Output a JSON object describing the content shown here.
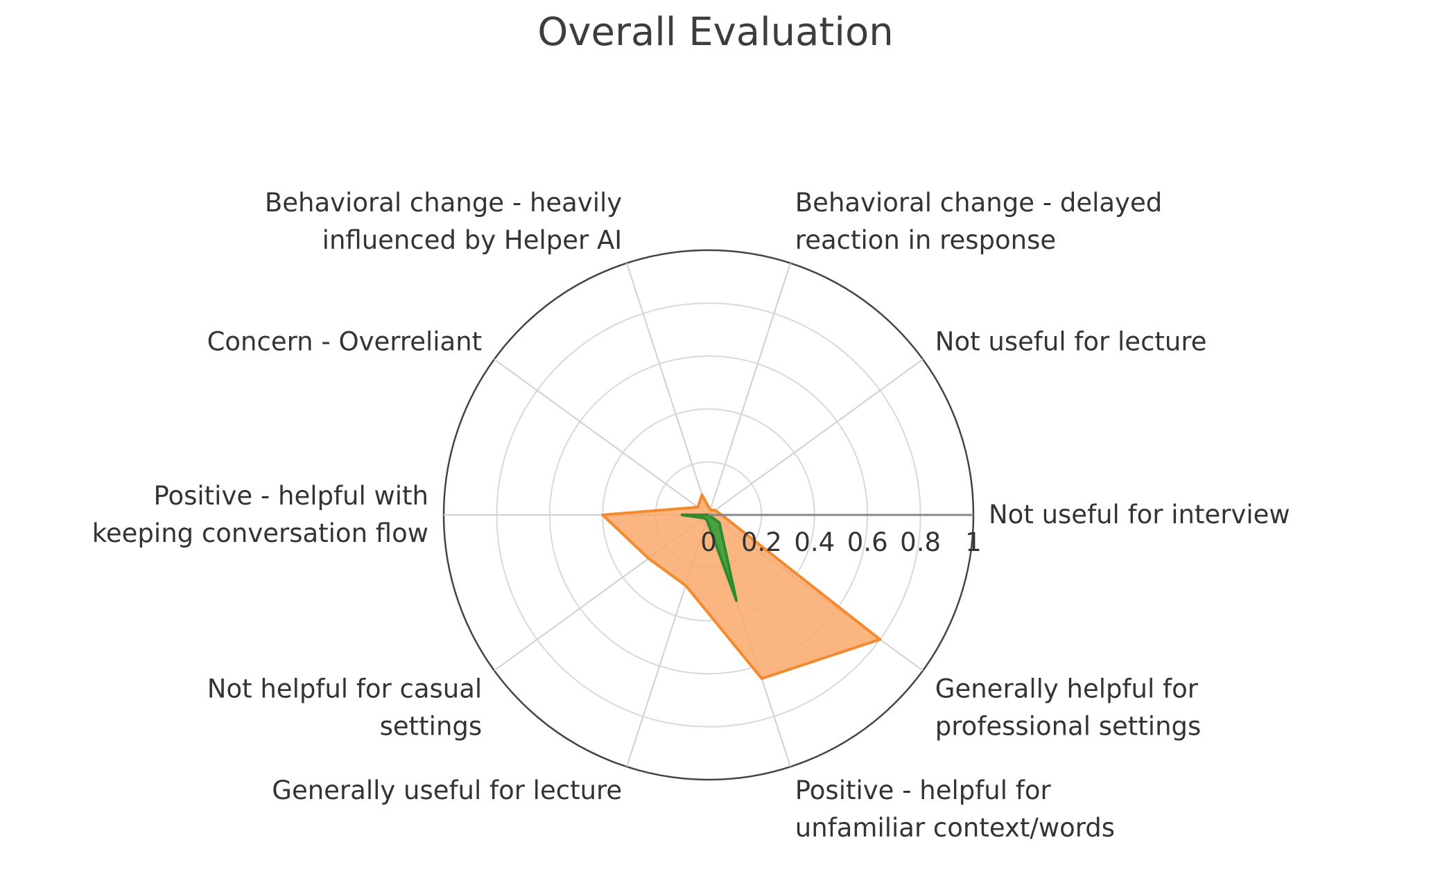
{
  "chart_data": {
    "type": "radar",
    "title": "Overall Evaluation",
    "categories": [
      "Not useful for interview",
      "Not useful for lecture",
      "Behavioral change - delayed reaction in response",
      "Behavioral change - heavily influenced by Helper AI",
      "Concern - Overreliant",
      "Positive - helpful with keeping conversation flow",
      "Not helpful for casual settings",
      "Generally useful for lecture",
      "Positive - helpful for unfamiliar context/words",
      "Generally helpful for professional settings"
    ],
    "category_lines": [
      [
        "Not useful for interview"
      ],
      [
        "Not useful for lecture"
      ],
      [
        "Behavioral change - delayed",
        "reaction in response"
      ],
      [
        "Behavioral change - heavily",
        "influenced by Helper AI"
      ],
      [
        "Concern - Overreliant"
      ],
      [
        "Positive - helpful with",
        "keeping conversation flow"
      ],
      [
        "Not helpful for casual",
        "settings"
      ],
      [
        "Generally useful for lecture"
      ],
      [
        "Positive - helpful for",
        "unfamiliar context/words"
      ],
      [
        "Generally helpful for",
        "professional settings"
      ]
    ],
    "series": [
      {
        "values": [
          0.05,
          0.03,
          0.02,
          0.08,
          0.05,
          0.4,
          0.28,
          0.28,
          0.65,
          0.8
        ],
        "color": "#f9a86b",
        "line_color": "#f38a2e"
      },
      {
        "values": [
          0.0,
          0.0,
          0.0,
          0.0,
          0.0,
          0.1,
          0.02,
          0.02,
          0.34,
          0.05
        ],
        "color": "#3a9e3a",
        "line_color": "#2e8b2e"
      }
    ],
    "radial_ticks": [
      "0",
      "0.2",
      "0.4",
      "0.6",
      "0.8",
      "1"
    ],
    "radial_range": [
      0,
      1
    ],
    "grid": true,
    "legend": "none"
  }
}
